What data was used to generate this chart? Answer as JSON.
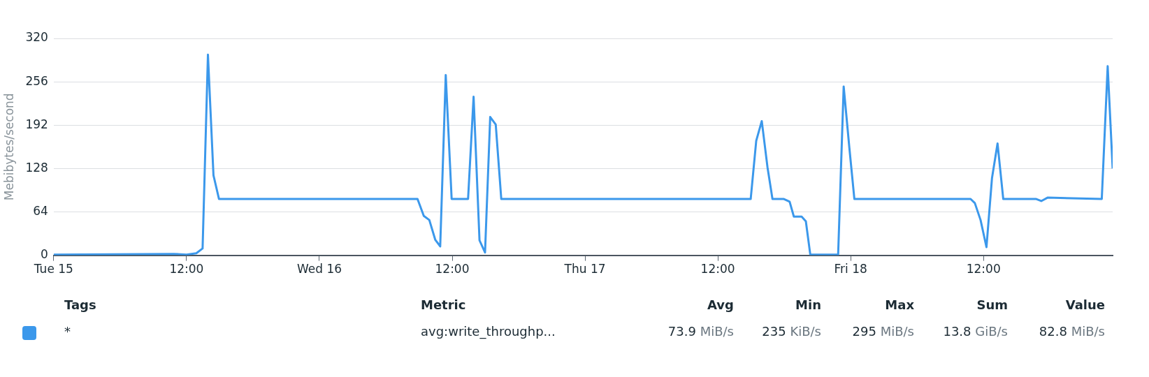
{
  "chart_data": {
    "type": "line",
    "ylabel": "Mebibytes/second",
    "x": [
      "--03-15T00:00",
      "--03-15T10:50",
      "--03-15T12:00",
      "--03-15T12:53",
      "--03-15T13:27",
      "--03-15T13:56",
      "--03-15T14:26",
      "--03-15T14:56",
      "--03-16T08:52",
      "--03-16T09:26",
      "--03-16T09:56",
      "--03-16T10:28",
      "--03-16T10:55",
      "--03-16T11:25",
      "--03-16T11:57",
      "--03-16T13:26",
      "--03-16T13:56",
      "--03-16T14:28",
      "--03-16T14:58",
      "--03-16T15:26",
      "--03-16T15:56",
      "--03-16T16:26",
      "--03-17T14:58",
      "--03-17T15:28",
      "--03-17T15:58",
      "--03-17T16:29",
      "--03-17T16:56",
      "--03-17T17:58",
      "--03-17T18:29",
      "--03-17T18:52",
      "--03-17T19:34",
      "--03-17T19:57",
      "--03-17T20:21",
      "--03-17T22:52",
      "--03-17T23:22",
      "--03-17T23:53",
      "--03-18T00:20",
      "--03-18T10:50",
      "--03-18T11:13",
      "--03-18T11:44",
      "--03-18T12:16",
      "--03-18T12:46",
      "--03-18T13:16",
      "--03-18T13:47",
      "--03-18T16:46",
      "--03-18T17:13",
      "--03-18T17:47",
      "--03-18T22:41",
      "--03-18T23:13",
      "--03-18T23:40"
    ],
    "series": [
      {
        "name": "*",
        "color": "#3b98eb",
        "values": [
          1,
          2,
          1,
          3,
          10,
          296,
          118,
          83,
          83,
          58,
          52,
          23,
          13,
          266,
          83,
          83,
          234,
          22,
          4,
          204,
          193,
          83,
          83,
          169,
          198,
          130,
          83,
          83,
          79,
          57,
          57,
          50,
          1,
          1,
          249,
          158,
          83,
          83,
          77,
          52,
          12,
          114,
          165,
          83,
          83,
          80,
          85,
          83,
          279,
          128
        ]
      }
    ],
    "xlim": [
      "--03-15T00:00",
      "--03-18T23:40"
    ],
    "xticks": [
      {
        "value": "--03-15T00:00",
        "label": "Tue 15"
      },
      {
        "value": "--03-15T12:00",
        "label": "12:00"
      },
      {
        "value": "--03-16T00:00",
        "label": "Wed 16"
      },
      {
        "value": "--03-16T12:00",
        "label": "12:00"
      },
      {
        "value": "--03-17T00:00",
        "label": "Thu 17"
      },
      {
        "value": "--03-17T12:00",
        "label": "12:00"
      },
      {
        "value": "--03-18T00:00",
        "label": "Fri 18"
      },
      {
        "value": "--03-18T12:00",
        "label": "12:00"
      }
    ],
    "ylim": [
      0,
      320
    ],
    "yticks": [
      0,
      64,
      128,
      192,
      256,
      320
    ],
    "grid": "y",
    "legend": "bottom",
    "annotations": [
      "Tags",
      "Metric",
      "Avg",
      "Min",
      "Max",
      "Sum",
      "Value",
      "avg:write_throughp...",
      "73.9 MiB/s",
      "235 KiB/s",
      "295 MiB/s",
      "13.8 GiB/s",
      "82.8 MiB/s"
    ]
  }
}
